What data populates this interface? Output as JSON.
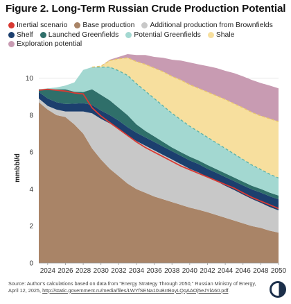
{
  "title": "Figure 2. Long-Term Russian Crude Production Potential",
  "legend": [
    {
      "key": "inertial",
      "label": "Inertial scenario",
      "color": "#d93a33"
    },
    {
      "key": "base",
      "label": "Base production",
      "color": "#a98467"
    },
    {
      "key": "brownfields",
      "label": "Additional production from Brownfields",
      "color": "#c8c8c8"
    },
    {
      "key": "shelf",
      "label": "Shelf",
      "color": "#1c3f6e"
    },
    {
      "key": "launched",
      "label": "Launched Greenfields",
      "color": "#2f6f6a"
    },
    {
      "key": "potential",
      "label": "Potential Greenfields",
      "color": "#a3d8d1"
    },
    {
      "key": "shale",
      "label": "Shale",
      "color": "#f7df9e"
    },
    {
      "key": "exploration",
      "label": "Exploration potential",
      "color": "#c89bb2"
    }
  ],
  "source": {
    "text": "Source: Author's calculations based on data from \"Energy Strategy Through 2050,\" Russian Ministry of Energy, April 12, 2025,",
    "link": "http://static.government.ru/media/files/LWYfSENa10uBrrBoyLQqAAOj5eJYlA60.pdf",
    "end": "."
  },
  "logo": {
    "icon": "publisher-logo-icon"
  },
  "chart_data": {
    "type": "area",
    "stacked": true,
    "title": "Figure 2. Long-Term Russian Crude Production Potential",
    "ylabel": "mmbbl/d",
    "xlabel": "",
    "xlim": [
      2023,
      2050
    ],
    "ylim": [
      0,
      11
    ],
    "x_ticks": [
      "2024",
      "2026",
      "2028",
      "2030",
      "2032",
      "2034",
      "2036",
      "2038",
      "2040",
      "2042",
      "2044",
      "2046",
      "2048",
      "2050"
    ],
    "y_ticks": [
      "0",
      "2",
      "4",
      "6",
      "8",
      "10"
    ],
    "grid": true,
    "legend_position": "top",
    "x": [
      2023,
      2024,
      2025,
      2026,
      2027,
      2028,
      2029,
      2030,
      2031,
      2032,
      2033,
      2034,
      2035,
      2036,
      2037,
      2038,
      2039,
      2040,
      2041,
      2042,
      2043,
      2044,
      2045,
      2046,
      2047,
      2048,
      2049,
      2050
    ],
    "series": [
      {
        "key": "base",
        "name": "Base production",
        "color": "#a98467",
        "values": [
          8.7,
          8.3,
          8.0,
          7.9,
          7.5,
          7.0,
          6.2,
          5.6,
          5.1,
          4.7,
          4.3,
          4.0,
          3.8,
          3.6,
          3.45,
          3.3,
          3.15,
          3.0,
          2.88,
          2.75,
          2.6,
          2.45,
          2.3,
          2.15,
          2.0,
          1.9,
          1.75,
          1.65
        ]
      },
      {
        "key": "brownfields",
        "name": "Additional production from Brownfields",
        "color": "#c8c8c8",
        "values": [
          0.2,
          0.2,
          0.3,
          0.3,
          0.7,
          1.2,
          1.9,
          2.2,
          2.45,
          2.55,
          2.6,
          2.6,
          2.55,
          2.5,
          2.4,
          2.3,
          2.2,
          2.1,
          2.02,
          1.9,
          1.83,
          1.73,
          1.65,
          1.55,
          1.46,
          1.36,
          1.28,
          1.2
        ]
      },
      {
        "key": "shelf",
        "name": "Shelf",
        "color": "#1c3f6e",
        "values": [
          0.35,
          0.4,
          0.4,
          0.4,
          0.42,
          0.45,
          0.45,
          0.45,
          0.45,
          0.45,
          0.45,
          0.45,
          0.45,
          0.45,
          0.45,
          0.45,
          0.45,
          0.45,
          0.45,
          0.45,
          0.45,
          0.47,
          0.48,
          0.5,
          0.52,
          0.55,
          0.58,
          0.6
        ]
      },
      {
        "key": "launched",
        "name": "Launched Greenfields",
        "color": "#2f6f6a",
        "values": [
          0.15,
          0.5,
          0.7,
          0.8,
          0.65,
          0.6,
          0.85,
          0.85,
          0.8,
          0.7,
          0.65,
          0.45,
          0.35,
          0.3,
          0.25,
          0.2,
          0.2,
          0.2,
          0.2,
          0.2,
          0.2,
          0.2,
          0.2,
          0.2,
          0.2,
          0.2,
          0.2,
          0.2
        ]
      },
      {
        "key": "potential",
        "name": "Potential Greenfields",
        "color": "#a3d8d1",
        "values": [
          0.0,
          0.05,
          0.1,
          0.2,
          0.5,
          1.2,
          1.2,
          1.5,
          1.8,
          2.0,
          2.15,
          2.2,
          2.15,
          2.05,
          1.95,
          1.85,
          1.75,
          1.65,
          1.55,
          1.5,
          1.42,
          1.35,
          1.27,
          1.2,
          1.12,
          1.05,
          1.0,
          0.95
        ]
      },
      {
        "key": "shale",
        "name": "Shale",
        "color": "#f7df9e",
        "values": [
          0.0,
          0.0,
          0.0,
          0.0,
          0.0,
          0.0,
          0.0,
          0.05,
          0.35,
          0.65,
          0.95,
          1.2,
          1.45,
          1.65,
          1.85,
          2.0,
          2.15,
          2.25,
          2.35,
          2.45,
          2.55,
          2.65,
          2.72,
          2.8,
          2.85,
          2.9,
          3.0,
          3.05
        ]
      },
      {
        "key": "exploration",
        "name": "Exploration potential",
        "color": "#c89bb2",
        "values": [
          0.0,
          0.0,
          0.0,
          0.0,
          0.0,
          0.0,
          0.0,
          0.0,
          0.05,
          0.1,
          0.2,
          0.35,
          0.5,
          0.6,
          0.75,
          0.9,
          1.05,
          1.2,
          1.3,
          1.4,
          1.5,
          1.55,
          1.65,
          1.7,
          1.75,
          1.78,
          1.79,
          1.8
        ]
      }
    ],
    "lines": [
      {
        "key": "inertial",
        "name": "Inertial scenario",
        "color": "#d93a33",
        "values": [
          9.35,
          9.4,
          9.35,
          9.3,
          9.2,
          9.15,
          8.4,
          7.95,
          7.6,
          7.25,
          6.9,
          6.55,
          6.25,
          6.0,
          5.75,
          5.5,
          5.25,
          5.05,
          4.85,
          4.65,
          4.45,
          4.25,
          4.05,
          3.8,
          3.55,
          3.35,
          3.15,
          2.95
        ]
      }
    ]
  }
}
